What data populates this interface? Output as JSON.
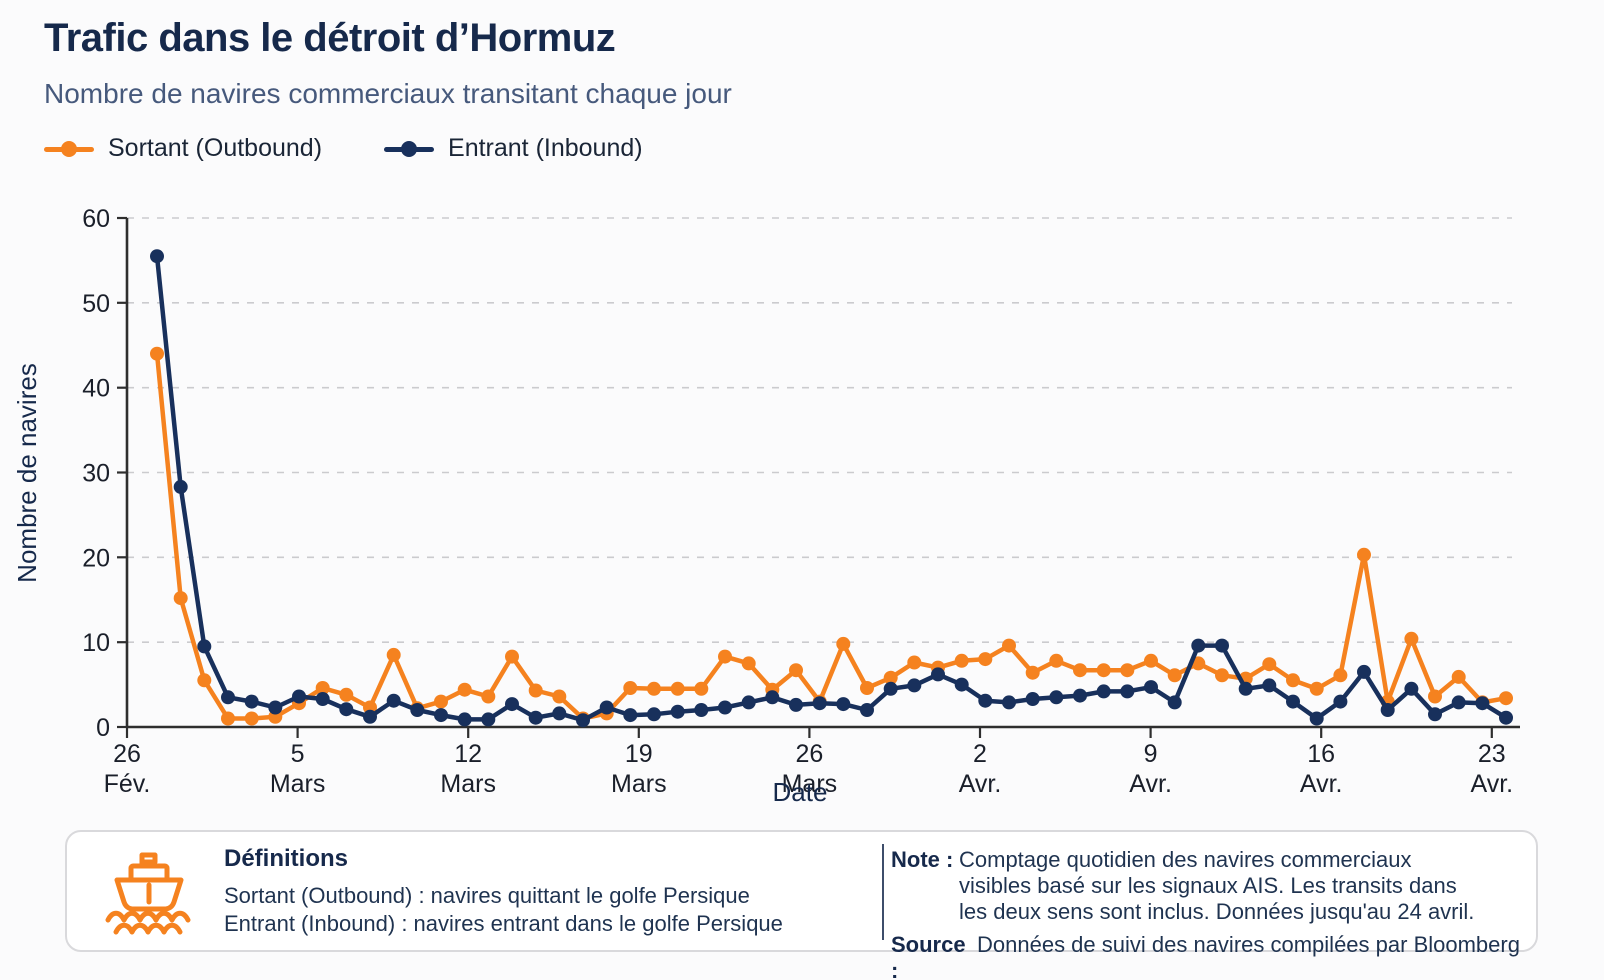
{
  "header": {
    "title": "Trafic dans le détroit d’Hormuz",
    "subtitle": "Nombre de navires commerciaux transitant chaque jour"
  },
  "legend": [
    {
      "label": "Sortant (Outbound)",
      "color": "#F5821F"
    },
    {
      "label": "Entrant (Inbound)",
      "color": "#18305C"
    }
  ],
  "chart_data": {
    "type": "line",
    "title": "Trafic dans le détroit d’Hormuz",
    "xlabel": "Date",
    "ylabel": "Nombre de navires",
    "ylim": [
      0,
      60
    ],
    "yticks": [
      0,
      10,
      20,
      30,
      40,
      50,
      60
    ],
    "grid": "horizontal-dashed",
    "legend_position": "top-left",
    "x_tick_labels": [
      {
        "day": "26",
        "month": "Fév."
      },
      {
        "day": "5",
        "month": "Mars"
      },
      {
        "day": "12",
        "month": "Mars"
      },
      {
        "day": "19",
        "month": "Mars"
      },
      {
        "day": "26",
        "month": "Mars"
      },
      {
        "day": "2",
        "month": "Avr."
      },
      {
        "day": "9",
        "month": "Avr."
      },
      {
        "day": "16",
        "month": "Avr."
      },
      {
        "day": "23",
        "month": "Avr."
      }
    ],
    "dates": [
      "26 fév.",
      "27 fév.",
      "28 fév.",
      "1 mars",
      "2 mars",
      "3 mars",
      "4 mars",
      "5 mars",
      "6 mars",
      "7 mars",
      "8 mars",
      "9 mars",
      "10 mars",
      "11 mars",
      "12 mars",
      "13 mars",
      "14 mars",
      "15 mars",
      "16 mars",
      "17 mars",
      "18 mars",
      "19 mars",
      "20 mars",
      "21 mars",
      "22 mars",
      "23 mars",
      "24 mars",
      "25 mars",
      "26 mars",
      "27 mars",
      "28 mars",
      "29 mars",
      "30 mars",
      "31 mars",
      "1 avr.",
      "2 avr.",
      "3 avr.",
      "4 avr.",
      "5 avr.",
      "6 avr.",
      "7 avr.",
      "8 avr.",
      "9 avr.",
      "10 avr.",
      "11 avr.",
      "12 avr.",
      "13 avr.",
      "14 avr.",
      "15 avr.",
      "16 avr.",
      "17 avr.",
      "18 avr.",
      "19 avr.",
      "20 avr.",
      "21 avr.",
      "22 avr.",
      "23 avr.",
      "24 avr."
    ],
    "series": [
      {
        "name": "Sortant (Outbound)",
        "color": "#F5821F",
        "values": [
          44,
          15.2,
          5.5,
          1,
          1,
          1.2,
          2.8,
          4.6,
          3.8,
          2.3,
          8.5,
          2.2,
          3,
          4.4,
          3.6,
          8.3,
          4.3,
          3.6,
          1,
          1.6,
          4.6,
          4.5,
          4.5,
          4.5,
          8.3,
          7.5,
          4.4,
          6.7,
          3,
          9.8,
          4.6,
          5.8,
          7.6,
          7,
          7.8,
          8,
          9.6,
          6.4,
          7.8,
          6.7,
          6.7,
          6.7,
          7.8,
          6.1,
          7.5,
          6.1,
          5.7,
          7.4,
          5.5,
          4.5,
          6.1,
          20.3,
          3,
          10.4,
          3.6,
          5.9,
          2.9,
          3.4
        ]
      },
      {
        "name": "Entrant (Inbound)",
        "color": "#18305C",
        "values": [
          55.5,
          28.3,
          9.5,
          3.5,
          3,
          2.3,
          3.6,
          3.3,
          2.1,
          1.2,
          3.1,
          2,
          1.4,
          0.9,
          0.9,
          2.7,
          1.1,
          1.6,
          0.8,
          2.3,
          1.4,
          1.5,
          1.8,
          2,
          2.3,
          2.9,
          3.5,
          2.6,
          2.8,
          2.7,
          2,
          4.5,
          4.9,
          6.2,
          5,
          3.1,
          2.9,
          3.3,
          3.5,
          3.7,
          4.2,
          4.2,
          4.7,
          2.9,
          9.6,
          9.6,
          4.5,
          4.9,
          3,
          1,
          3,
          6.5,
          2,
          4.5,
          1.5,
          2.9,
          2.8,
          1.1
        ]
      }
    ]
  },
  "footer": {
    "definitions_title": "Définitions",
    "definitions": [
      "Sortant (Outbound) : navires quittant le golfe Persique",
      "Entrant (Inbound) : navires entrant dans le golfe Persique"
    ],
    "note_label": "Note :",
    "note_text": "Comptage quotidien des navires commerciaux visibles basé sur les signaux AIS. Les transits dans les deux sens sont inclus. Données jusqu'au 24 avril.",
    "source_label": "Source :",
    "source_text": "Données de suivi des navires compilées par Bloomberg"
  },
  "colors": {
    "accent_orange": "#F5821F",
    "navy": "#18305C",
    "title": "#16294B",
    "subtitle": "#46597C",
    "axis": "#2E2E2E",
    "grid": "#CBCBCE",
    "tick_label": "#1A1F2A",
    "background": "#FBFBFC",
    "card_border": "#D9D9DC"
  }
}
